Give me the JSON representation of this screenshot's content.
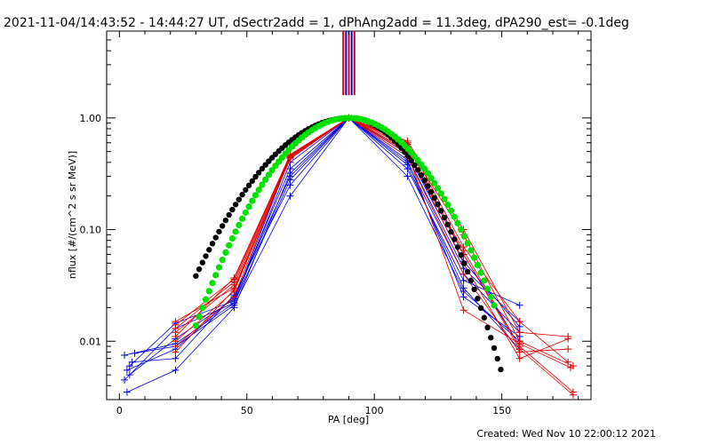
{
  "header": {
    "title": "2021-11-04/14:43:52 - 14:44:27 UT, dSectr2add = 1, dPhAng2add = 11.3deg, dPA290_est= -0.1deg"
  },
  "footer": {
    "created": "Created: Wed Nov 10 22:00:12 2021"
  },
  "colors": {
    "red": "#e00000",
    "blue": "#0000e0",
    "green": "#00e000",
    "black": "#000000"
  },
  "chart_data": {
    "type": "scatter",
    "xlabel": "PA [deg]",
    "ylabel": "nflux [#/(cm^2 s sr MeV)]",
    "xlim": [
      -5,
      185
    ],
    "ylim": [
      0.003,
      6
    ],
    "yscale": "log",
    "xticks": [
      0,
      50,
      100,
      150
    ],
    "yticks": [
      0.01,
      0.1,
      1.0
    ],
    "ytick_labels": [
      "0.01",
      "0.10",
      "1.00"
    ],
    "grid": false,
    "red_lines": [
      [
        [
          22,
          0.013
        ],
        [
          45,
          0.034
        ],
        [
          67,
          0.47
        ],
        [
          90,
          1.0
        ],
        [
          113,
          0.62
        ],
        [
          135,
          0.1
        ],
        [
          157,
          0.012
        ],
        [
          176,
          0.011
        ]
      ],
      [
        [
          22,
          0.011
        ],
        [
          45,
          0.037
        ],
        [
          67,
          0.46
        ],
        [
          90,
          1.0
        ],
        [
          113,
          0.6
        ],
        [
          135,
          0.07
        ],
        [
          157,
          0.015
        ],
        [
          176,
          0.0065
        ]
      ],
      [
        [
          22,
          0.015
        ],
        [
          45,
          0.03
        ],
        [
          67,
          0.45
        ],
        [
          90,
          1.0
        ],
        [
          113,
          0.55
        ],
        [
          135,
          0.09
        ],
        [
          157,
          0.01
        ],
        [
          178,
          0.006
        ]
      ],
      [
        [
          22,
          0.01
        ],
        [
          45,
          0.028
        ],
        [
          67,
          0.44
        ],
        [
          90,
          1.0
        ],
        [
          113,
          0.5
        ],
        [
          135,
          0.065
        ],
        [
          157,
          0.009
        ],
        [
          178,
          0.0035
        ]
      ],
      [
        [
          22,
          0.012
        ],
        [
          45,
          0.032
        ],
        [
          67,
          0.46
        ],
        [
          90,
          1.0
        ],
        [
          113,
          0.45
        ],
        [
          135,
          0.04
        ],
        [
          157,
          0.008
        ],
        [
          176,
          0.0085
        ]
      ],
      [
        [
          22,
          0.009
        ],
        [
          45,
          0.025
        ],
        [
          67,
          0.45
        ],
        [
          90,
          1.0
        ],
        [
          113,
          0.58
        ],
        [
          135,
          0.06
        ],
        [
          157,
          0.0085
        ],
        [
          178,
          0.0033
        ]
      ],
      [
        [
          22,
          0.014
        ],
        [
          45,
          0.036
        ],
        [
          67,
          0.47
        ],
        [
          90,
          1.0
        ],
        [
          113,
          0.52
        ],
        [
          135,
          0.05
        ],
        [
          157,
          0.007
        ],
        [
          176,
          0.0105
        ]
      ],
      [
        [
          22,
          0.008
        ],
        [
          45,
          0.029
        ],
        [
          67,
          0.43
        ],
        [
          90,
          1.0
        ],
        [
          113,
          0.48
        ],
        [
          135,
          0.019
        ],
        [
          157,
          0.0095
        ],
        [
          177,
          0.0058
        ]
      ]
    ],
    "blue_lines": [
      [
        [
          2,
          0.0075
        ],
        [
          22,
          0.0095
        ],
        [
          45,
          0.022
        ],
        [
          67,
          0.28
        ],
        [
          90,
          1.0
        ],
        [
          113,
          0.35
        ],
        [
          135,
          0.035
        ],
        [
          157,
          0.021
        ]
      ],
      [
        [
          3,
          0.0055
        ],
        [
          22,
          0.0085
        ],
        [
          45,
          0.025
        ],
        [
          67,
          0.3
        ],
        [
          90,
          1.0
        ],
        [
          113,
          0.4
        ],
        [
          135,
          0.04
        ],
        [
          157,
          0.012
        ]
      ],
      [
        [
          4,
          0.005
        ],
        [
          22,
          0.0105
        ],
        [
          45,
          0.024
        ],
        [
          67,
          0.35
        ],
        [
          90,
          1.0
        ],
        [
          113,
          0.3
        ],
        [
          135,
          0.028
        ],
        [
          157,
          0.01
        ]
      ],
      [
        [
          2,
          0.0045
        ],
        [
          22,
          0.013
        ],
        [
          45,
          0.022
        ],
        [
          67,
          0.4
        ],
        [
          90,
          1.0
        ],
        [
          113,
          0.45
        ],
        [
          135,
          0.045
        ],
        [
          157,
          0.015
        ]
      ],
      [
        [
          5,
          0.0065
        ],
        [
          22,
          0.007
        ],
        [
          45,
          0.026
        ],
        [
          67,
          0.25
        ],
        [
          90,
          1.0
        ],
        [
          113,
          0.5
        ],
        [
          135,
          0.06
        ],
        [
          157,
          0.009
        ]
      ],
      [
        [
          6,
          0.0078
        ],
        [
          22,
          0.009
        ],
        [
          45,
          0.021
        ],
        [
          67,
          0.2
        ],
        [
          90,
          1.0
        ],
        [
          113,
          0.38
        ],
        [
          135,
          0.03
        ],
        [
          157,
          0.0085
        ]
      ],
      [
        [
          3,
          0.0035
        ],
        [
          22,
          0.0055
        ],
        [
          45,
          0.02
        ],
        [
          67,
          0.32
        ],
        [
          90,
          1.0
        ],
        [
          113,
          0.42
        ],
        [
          135,
          0.025
        ],
        [
          157,
          0.011
        ]
      ],
      [
        [
          4,
          0.006
        ],
        [
          22,
          0.0145
        ],
        [
          45,
          0.023
        ],
        [
          67,
          0.45
        ],
        [
          90,
          1.0
        ],
        [
          113,
          0.48
        ],
        [
          135,
          0.052
        ],
        [
          157,
          0.0135
        ]
      ]
    ],
    "black_fit": {
      "center": 90,
      "sigma_left": 23.5,
      "sigma_right": 18.5,
      "x_range": [
        30,
        150
      ]
    },
    "green_fit": {
      "center": 90,
      "sigma_left": 20.5,
      "sigma_right": 20.5,
      "x_range": [
        30,
        147
      ]
    },
    "vertical_bars": [
      {
        "x": 87.8,
        "color": "red"
      },
      {
        "x": 88.9,
        "color": "blue"
      },
      {
        "x": 90.0,
        "color": "red"
      },
      {
        "x": 91.1,
        "color": "blue"
      },
      {
        "x": 92.2,
        "color": "red"
      }
    ]
  }
}
